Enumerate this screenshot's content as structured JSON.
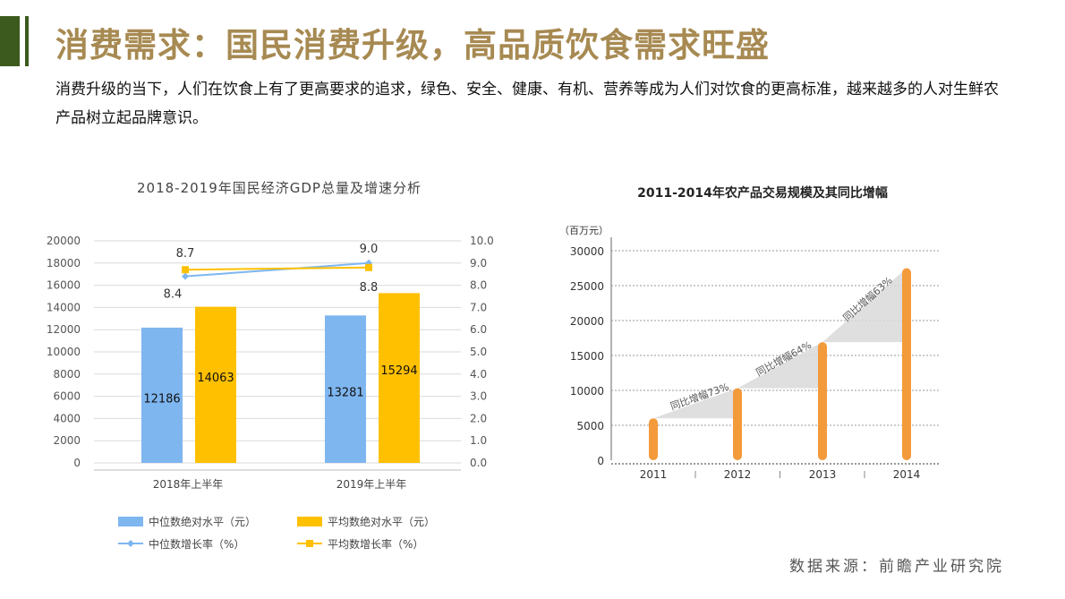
{
  "header": {
    "title": "消费需求：国民消费升级，高品质饮食需求旺盛",
    "description": "消费升级的当下，人们在饮食上有了更高要求的追求，绿色、安全、健康、有机、营养等成为人们对饮食的更高标准，越来越多的人对生鲜农产品树立起品牌意识。",
    "source": "数据来源：前瞻产业研究院"
  },
  "colors": {
    "accent": "#3c5a1e",
    "title": "#a78a52",
    "median": "#7eb6f0",
    "average": "#ffc000",
    "bar2": "#f39a3a"
  },
  "chart_data": [
    {
      "type": "bar",
      "title": "2018-2019年国民经济GDP总量及增速分析",
      "categories": [
        "2018年上半年",
        "2019年上半年"
      ],
      "series": [
        {
          "name": "中位数绝对水平（元）",
          "type": "bar",
          "axis": "left",
          "values": [
            12186,
            13281
          ]
        },
        {
          "name": "平均数绝对水平（元）",
          "type": "bar",
          "axis": "left",
          "values": [
            14063,
            15294
          ]
        },
        {
          "name": "中位数增长率（%）",
          "type": "line",
          "axis": "right",
          "values": [
            8.4,
            9.0
          ]
        },
        {
          "name": "平均数增长率（%）",
          "type": "line",
          "axis": "right",
          "values": [
            8.7,
            8.8
          ]
        }
      ],
      "ylim_left": [
        0,
        20000
      ],
      "ylim_right": [
        0,
        10
      ],
      "yticks_left": [
        "0",
        "2000",
        "4000",
        "6000",
        "8000",
        "10000",
        "12000",
        "14000",
        "16000",
        "18000",
        "20000"
      ],
      "yticks_right": [
        "0.0",
        "1.0",
        "2.0",
        "3.0",
        "4.0",
        "5.0",
        "6.0",
        "7.0",
        "8.0",
        "9.0",
        "10.0"
      ],
      "legend_position": "bottom",
      "grid": true
    },
    {
      "type": "bar",
      "title": "2011-2014年农产品交易规模及其同比增幅",
      "ylabel": "（百万元）",
      "categories": [
        "2011",
        "2012",
        "2013",
        "2014"
      ],
      "values": [
        6000,
        10300,
        16900,
        27500
      ],
      "ylim": [
        0,
        30000
      ],
      "yticks": [
        "0",
        "5000",
        "10000",
        "15000",
        "20000",
        "25000",
        "30000"
      ],
      "annotations": [
        "同比增幅73%",
        "同比增幅64%",
        "同比增幅63%"
      ],
      "grid": true
    }
  ]
}
